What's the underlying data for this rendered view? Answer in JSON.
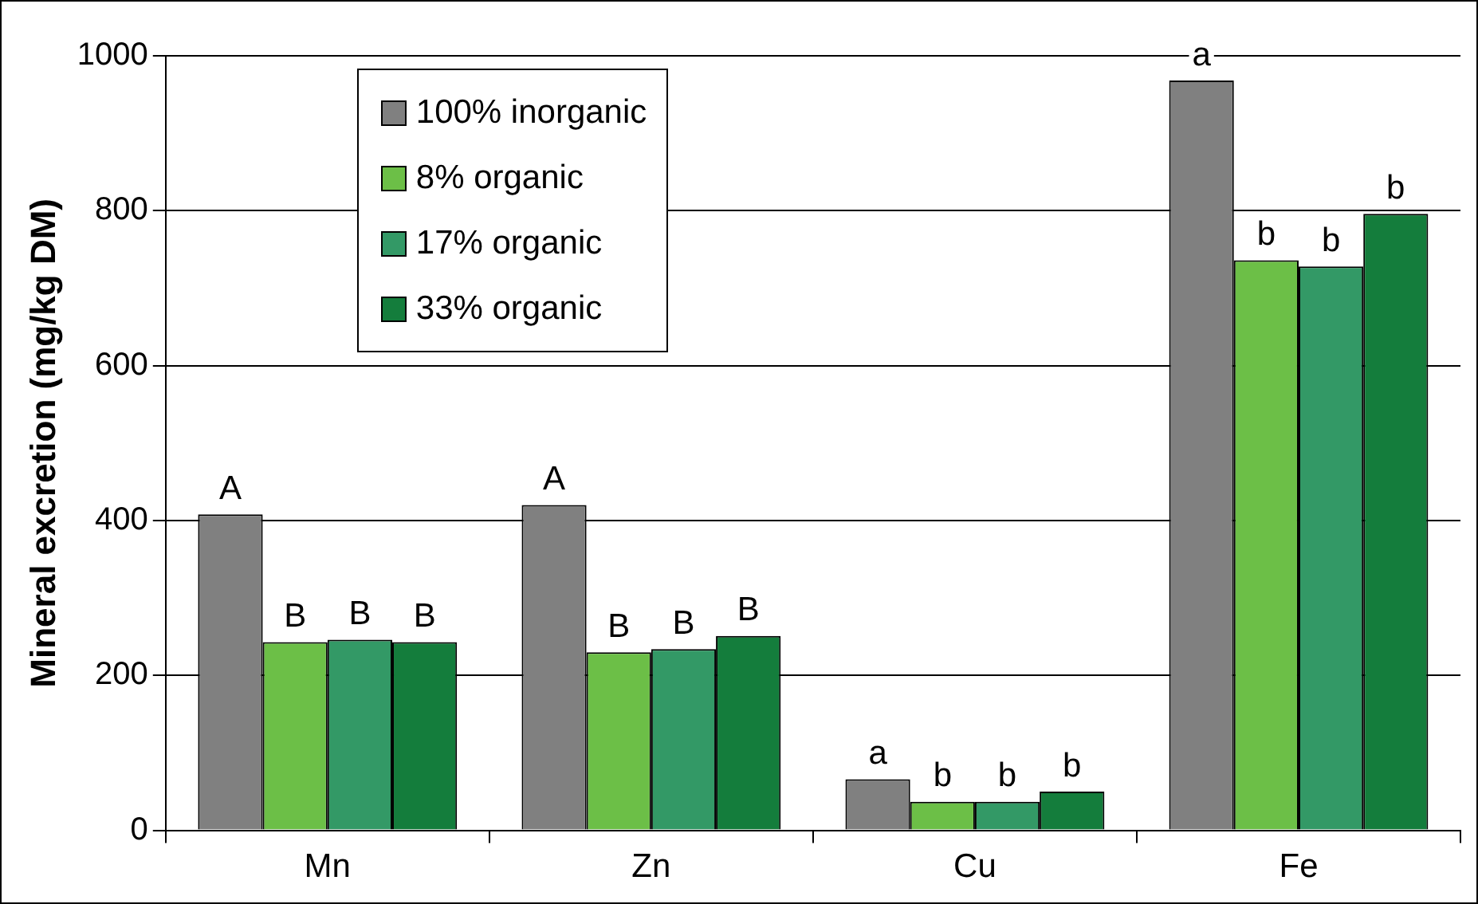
{
  "chart_data": {
    "type": "bar",
    "ylabel": "Mineral excretion (mg/kg DM)",
    "categories": [
      "Mn",
      "Zn",
      "Cu",
      "Fe"
    ],
    "ylim": [
      0,
      1000
    ],
    "yticks": [
      0,
      200,
      400,
      600,
      800,
      1000
    ],
    "grid": "y",
    "legend": "top left",
    "series": [
      {
        "name": "100% inorganic",
        "color": "#808080",
        "values": [
          408,
          420,
          66,
          968
        ],
        "value_labels": [
          "A",
          "A",
          "a",
          "a"
        ]
      },
      {
        "name": "8% organic",
        "color": "#6cbf47",
        "values": [
          243,
          230,
          37,
          736
        ],
        "value_labels": [
          "B",
          "B",
          "b",
          "b"
        ]
      },
      {
        "name": "17% organic",
        "color": "#339966",
        "values": [
          246,
          234,
          37,
          728
        ],
        "value_labels": [
          "B",
          "B",
          "b",
          "b"
        ]
      },
      {
        "name": "33% organic",
        "color": "#147d3c",
        "values": [
          243,
          251,
          50,
          796
        ],
        "value_labels": [
          "B",
          "B",
          "b",
          "b"
        ]
      }
    ]
  }
}
